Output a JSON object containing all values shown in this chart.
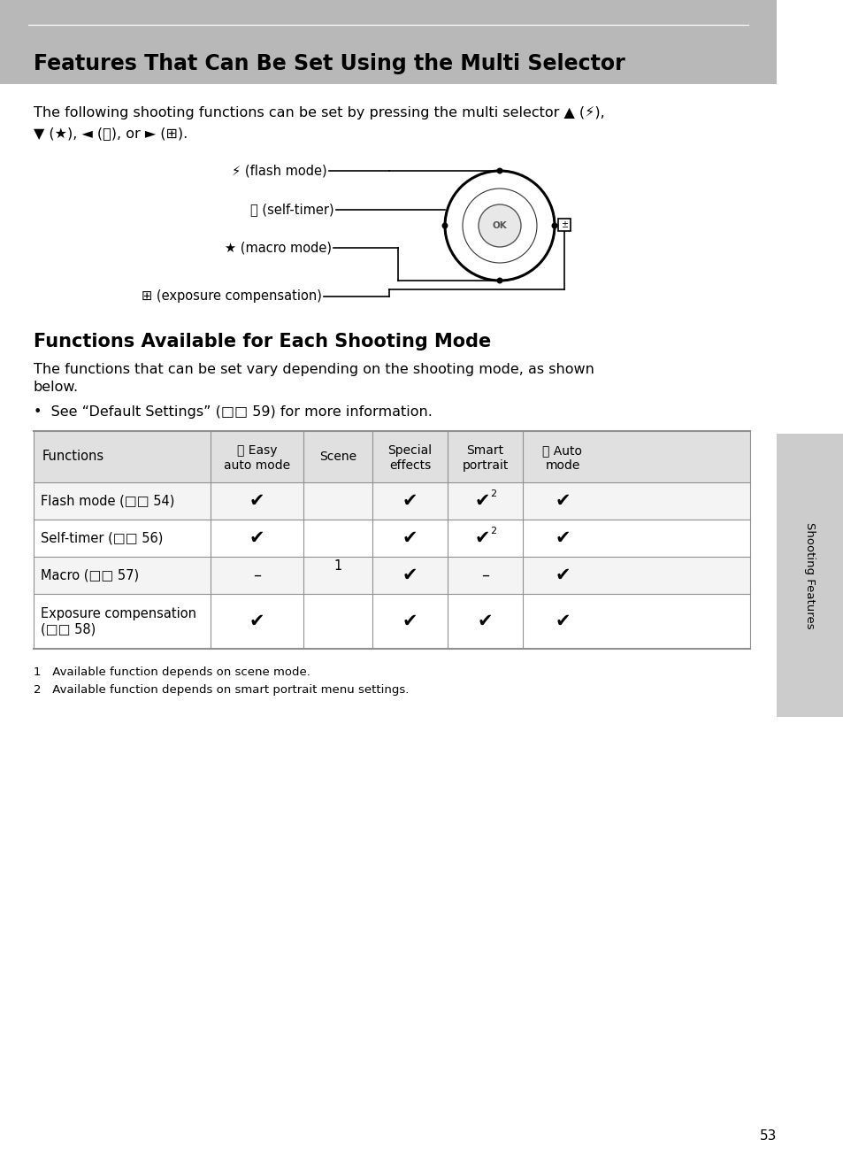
{
  "page_bg": "#ffffff",
  "header_bg": "#b8b8b8",
  "header_title": "Features That Can Be Set Using the Multi Selector",
  "header_title_fontsize": 17,
  "section2_title": "Functions Available for Each Shooting Mode",
  "section2_title_fontsize": 15,
  "table_header_bg": "#e0e0e0",
  "table_border_color": "#909090",
  "sidebar_bg": "#cccccc",
  "sidebar_text": "Shooting Features",
  "page_number": "53",
  "footnote1": "1   Available function depends on scene mode.",
  "footnote2": "2   Available function depends on smart portrait menu settings."
}
